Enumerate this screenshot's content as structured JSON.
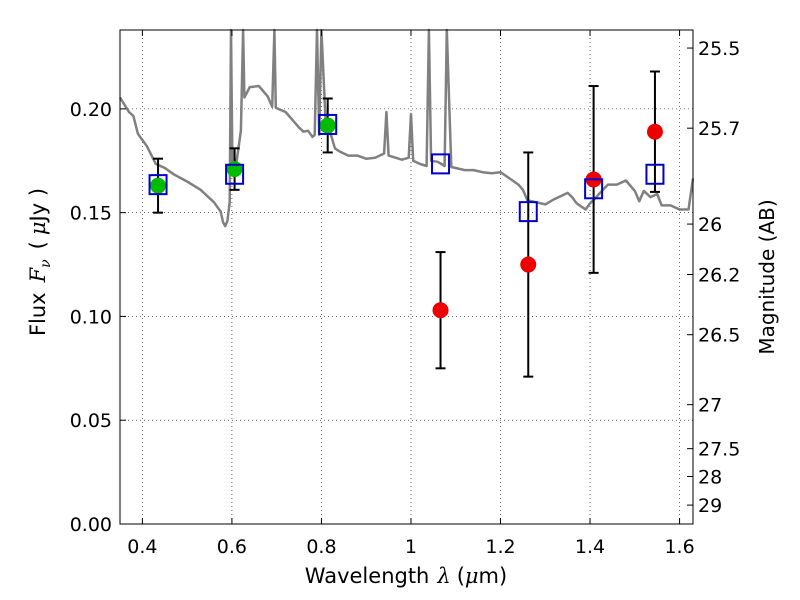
{
  "chart_data": {
    "type": "scatter",
    "xlabel": "Wavelength",
    "xlabel_symbol": "λ",
    "xlabel_unit_open": "(",
    "xlabel_unit_mu": "μ",
    "xlabel_unit_rest": "m)",
    "ylabel": "Flux",
    "ylabel_symbol": "F",
    "ylabel_symbol_sub": "ν",
    "ylabel_unit_open": "(",
    "ylabel_unit_mu": "μ",
    "ylabel_unit_rest": "Jy )",
    "y2label": "Magnitude (AB)",
    "xlim": [
      0.35,
      1.63
    ],
    "ylim": [
      0.0,
      0.238
    ],
    "grid": true,
    "x_ticks": [
      0.4,
      0.6,
      0.8,
      1.0,
      1.2,
      1.4,
      1.6
    ],
    "x_tick_labels": [
      "0.4",
      "0.6",
      "0.8",
      "1",
      "1.2",
      "1.4",
      "1.6"
    ],
    "y_ticks": [
      0.0,
      0.05,
      0.1,
      0.15,
      0.2
    ],
    "y_tick_labels": [
      "0.00",
      "0.05",
      "0.10",
      "0.15",
      "0.20"
    ],
    "y2_ticks": [
      {
        "label": "25.5",
        "flux": 0.2293
      },
      {
        "label": "25.7",
        "flux": 0.1907
      },
      {
        "label": "26",
        "flux": 0.1445
      },
      {
        "label": "26.2",
        "flux": 0.1202
      },
      {
        "label": "26.5",
        "flux": 0.0912
      },
      {
        "label": "27",
        "flux": 0.0575
      },
      {
        "label": "27.5",
        "flux": 0.0363
      },
      {
        "label": "28",
        "flux": 0.0229
      },
      {
        "label": "29",
        "flux": 0.0091
      }
    ],
    "series": [
      {
        "marker": "circle",
        "color": "#00bb00",
        "x": [
          0.435,
          0.606,
          0.814
        ],
        "y": [
          0.163,
          0.171,
          0.192
        ],
        "err": [
          0.013,
          0.01,
          0.013
        ]
      },
      {
        "marker": "circle",
        "color": "#ee0000",
        "x": [
          1.066,
          1.262,
          1.408,
          1.545
        ],
        "y": [
          0.103,
          0.125,
          0.166,
          0.189
        ],
        "err": [
          0.028,
          0.054,
          0.045,
          0.029
        ]
      },
      {
        "marker": "square-open",
        "color": "#0000cc",
        "x": [
          0.435,
          0.606,
          0.814,
          1.066,
          1.262,
          1.408,
          1.545
        ],
        "y": [
          0.1635,
          0.1685,
          0.1925,
          0.1735,
          0.1505,
          0.1615,
          0.1685
        ]
      }
    ],
    "model_curve": {
      "color": "#808080",
      "points": [
        [
          0.35,
          0.2055
        ],
        [
          0.37,
          0.1985
        ],
        [
          0.38,
          0.1965
        ],
        [
          0.39,
          0.188
        ],
        [
          0.4,
          0.185
        ],
        [
          0.41,
          0.182
        ],
        [
          0.43,
          0.1735
        ],
        [
          0.45,
          0.1715
        ],
        [
          0.47,
          0.1685
        ],
        [
          0.5,
          0.165
        ],
        [
          0.53,
          0.161
        ],
        [
          0.56,
          0.155
        ],
        [
          0.575,
          0.1505
        ],
        [
          0.58,
          0.1455
        ],
        [
          0.585,
          0.1435
        ],
        [
          0.59,
          0.146
        ],
        [
          0.595,
          0.155
        ],
        [
          0.598,
          0.238
        ],
        [
          0.601,
          0.173
        ],
        [
          0.61,
          0.174
        ],
        [
          0.62,
          0.1895
        ],
        [
          0.625,
          0.238
        ],
        [
          0.628,
          0.2055
        ],
        [
          0.64,
          0.2105
        ],
        [
          0.66,
          0.211
        ],
        [
          0.68,
          0.206
        ],
        [
          0.69,
          0.201
        ],
        [
          0.695,
          0.238
        ],
        [
          0.698,
          0.2005
        ],
        [
          0.72,
          0.1985
        ],
        [
          0.74,
          0.1935
        ],
        [
          0.75,
          0.191
        ],
        [
          0.76,
          0.189
        ],
        [
          0.77,
          0.1895
        ],
        [
          0.78,
          0.1865
        ],
        [
          0.785,
          0.1875
        ],
        [
          0.79,
          0.238
        ],
        [
          0.795,
          0.1875
        ],
        [
          0.8,
          0.238
        ],
        [
          0.81,
          0.191
        ],
        [
          0.82,
          0.1885
        ],
        [
          0.83,
          0.181
        ],
        [
          0.84,
          0.1795
        ],
        [
          0.86,
          0.1775
        ],
        [
          0.88,
          0.1775
        ],
        [
          0.9,
          0.176
        ],
        [
          0.92,
          0.1765
        ],
        [
          0.94,
          0.1785
        ],
        [
          0.945,
          0.1985
        ],
        [
          0.95,
          0.1775
        ],
        [
          0.98,
          0.1755
        ],
        [
          0.995,
          0.1765
        ],
        [
          1.0,
          0.1975
        ],
        [
          1.005,
          0.175
        ],
        [
          1.02,
          0.1735
        ],
        [
          1.035,
          0.1725
        ],
        [
          1.04,
          0.238
        ],
        [
          1.045,
          0.175
        ],
        [
          1.06,
          0.1745
        ],
        [
          1.075,
          0.1725
        ],
        [
          1.08,
          0.238
        ],
        [
          1.09,
          0.172
        ],
        [
          1.1,
          0.1715
        ],
        [
          1.12,
          0.1705
        ],
        [
          1.14,
          0.1705
        ],
        [
          1.16,
          0.1695
        ],
        [
          1.18,
          0.169
        ],
        [
          1.2,
          0.1695
        ],
        [
          1.22,
          0.1665
        ],
        [
          1.24,
          0.1635
        ],
        [
          1.25,
          0.161
        ],
        [
          1.26,
          0.156
        ],
        [
          1.28,
          0.155
        ],
        [
          1.3,
          0.154
        ],
        [
          1.32,
          0.1565
        ],
        [
          1.34,
          0.1585
        ],
        [
          1.35,
          0.1595
        ],
        [
          1.36,
          0.1575
        ],
        [
          1.37,
          0.1545
        ],
        [
          1.39,
          0.1515
        ],
        [
          1.4,
          0.1545
        ],
        [
          1.41,
          0.1565
        ],
        [
          1.42,
          0.159
        ],
        [
          1.44,
          0.1635
        ],
        [
          1.46,
          0.1635
        ],
        [
          1.48,
          0.1655
        ],
        [
          1.5,
          0.1605
        ],
        [
          1.51,
          0.1555
        ],
        [
          1.52,
          0.1605
        ],
        [
          1.535,
          0.1575
        ],
        [
          1.55,
          0.159
        ],
        [
          1.56,
          0.1535
        ],
        [
          1.58,
          0.1535
        ],
        [
          1.6,
          0.1515
        ],
        [
          1.62,
          0.1515
        ],
        [
          1.63,
          0.1665
        ]
      ]
    }
  }
}
